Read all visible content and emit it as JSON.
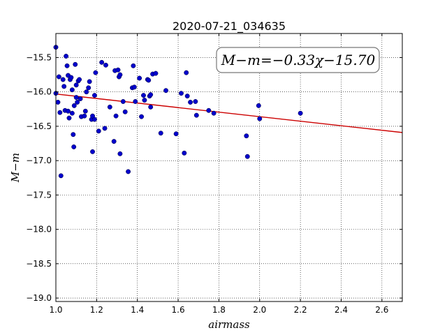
{
  "chart_data": {
    "type": "scatter",
    "title": "2020-07-21_034635",
    "xlabel": "airmass",
    "ylabel": "M−m",
    "xlim": [
      1.0,
      2.7
    ],
    "ylim": [
      -19.05,
      -15.15
    ],
    "y_inverted": true,
    "grid": true,
    "xticks": [
      "1.0",
      "1.2",
      "1.4",
      "1.6",
      "1.8",
      "2.0",
      "2.2",
      "2.4",
      "2.6"
    ],
    "yticks": [
      "−15.5",
      "−16.0",
      "−16.5",
      "−17.0",
      "−17.5",
      "−18.0",
      "−18.5",
      "−19.0"
    ],
    "annotation": "M−m=−0.33χ−15.70",
    "fit": {
      "slope": -0.33,
      "intercept": -15.7,
      "color": "#cc0000"
    },
    "point_color": "#0000cc",
    "points": [
      {
        "x": 1.0,
        "y": -15.35
      },
      {
        "x": 1.0,
        "y": -16.02
      },
      {
        "x": 1.01,
        "y": -16.15
      },
      {
        "x": 1.015,
        "y": -15.78
      },
      {
        "x": 1.02,
        "y": -16.3
      },
      {
        "x": 1.025,
        "y": -17.22
      },
      {
        "x": 1.035,
        "y": -15.82
      },
      {
        "x": 1.04,
        "y": -15.92
      },
      {
        "x": 1.045,
        "y": -16.27
      },
      {
        "x": 1.05,
        "y": -15.48
      },
      {
        "x": 1.055,
        "y": -15.62
      },
      {
        "x": 1.06,
        "y": -15.76
      },
      {
        "x": 1.06,
        "y": -16.28
      },
      {
        "x": 1.065,
        "y": -16.38
      },
      {
        "x": 1.07,
        "y": -15.82
      },
      {
        "x": 1.075,
        "y": -15.79
      },
      {
        "x": 1.08,
        "y": -15.97
      },
      {
        "x": 1.08,
        "y": -16.31
      },
      {
        "x": 1.085,
        "y": -16.62
      },
      {
        "x": 1.088,
        "y": -16.8
      },
      {
        "x": 1.09,
        "y": -16.2
      },
      {
        "x": 1.095,
        "y": -15.6
      },
      {
        "x": 1.1,
        "y": -15.9
      },
      {
        "x": 1.1,
        "y": -16.08
      },
      {
        "x": 1.105,
        "y": -16.15
      },
      {
        "x": 1.11,
        "y": -15.84
      },
      {
        "x": 1.115,
        "y": -15.82
      },
      {
        "x": 1.12,
        "y": -16.1
      },
      {
        "x": 1.125,
        "y": -16.36
      },
      {
        "x": 1.14,
        "y": -16.35
      },
      {
        "x": 1.145,
        "y": -16.28
      },
      {
        "x": 1.15,
        "y": -16.0
      },
      {
        "x": 1.16,
        "y": -15.94
      },
      {
        "x": 1.165,
        "y": -15.85
      },
      {
        "x": 1.175,
        "y": -16.4
      },
      {
        "x": 1.18,
        "y": -16.35
      },
      {
        "x": 1.18,
        "y": -16.87
      },
      {
        "x": 1.19,
        "y": -16.05
      },
      {
        "x": 1.19,
        "y": -16.4
      },
      {
        "x": 1.195,
        "y": -15.72
      },
      {
        "x": 1.21,
        "y": -16.57
      },
      {
        "x": 1.225,
        "y": -15.57
      },
      {
        "x": 1.24,
        "y": -16.53
      },
      {
        "x": 1.245,
        "y": -15.61
      },
      {
        "x": 1.265,
        "y": -16.22
      },
      {
        "x": 1.285,
        "y": -16.72
      },
      {
        "x": 1.29,
        "y": -15.69
      },
      {
        "x": 1.295,
        "y": -16.35
      },
      {
        "x": 1.305,
        "y": -15.68
      },
      {
        "x": 1.31,
        "y": -15.78
      },
      {
        "x": 1.315,
        "y": -15.75
      },
      {
        "x": 1.315,
        "y": -16.9
      },
      {
        "x": 1.33,
        "y": -16.14
      },
      {
        "x": 1.34,
        "y": -16.29
      },
      {
        "x": 1.355,
        "y": -17.16
      },
      {
        "x": 1.375,
        "y": -15.94
      },
      {
        "x": 1.38,
        "y": -15.62
      },
      {
        "x": 1.385,
        "y": -15.93
      },
      {
        "x": 1.39,
        "y": -16.14
      },
      {
        "x": 1.41,
        "y": -15.8
      },
      {
        "x": 1.42,
        "y": -16.36
      },
      {
        "x": 1.43,
        "y": -16.05
      },
      {
        "x": 1.435,
        "y": -16.12
      },
      {
        "x": 1.45,
        "y": -15.82
      },
      {
        "x": 1.455,
        "y": -15.83
      },
      {
        "x": 1.46,
        "y": -16.06
      },
      {
        "x": 1.465,
        "y": -16.04
      },
      {
        "x": 1.465,
        "y": -16.22
      },
      {
        "x": 1.475,
        "y": -15.74
      },
      {
        "x": 1.49,
        "y": -15.73
      },
      {
        "x": 1.515,
        "y": -16.6
      },
      {
        "x": 1.54,
        "y": -15.98
      },
      {
        "x": 1.59,
        "y": -16.61
      },
      {
        "x": 1.615,
        "y": -16.02
      },
      {
        "x": 1.63,
        "y": -16.89
      },
      {
        "x": 1.64,
        "y": -15.72
      },
      {
        "x": 1.645,
        "y": -16.06
      },
      {
        "x": 1.66,
        "y": -16.15
      },
      {
        "x": 1.685,
        "y": -16.14
      },
      {
        "x": 1.69,
        "y": -16.34
      },
      {
        "x": 1.75,
        "y": -16.27
      },
      {
        "x": 1.775,
        "y": -16.31
      },
      {
        "x": 1.935,
        "y": -16.64
      },
      {
        "x": 1.94,
        "y": -16.94
      },
      {
        "x": 1.995,
        "y": -16.2
      },
      {
        "x": 2.0,
        "y": -16.39
      },
      {
        "x": 2.2,
        "y": -16.31
      }
    ]
  }
}
